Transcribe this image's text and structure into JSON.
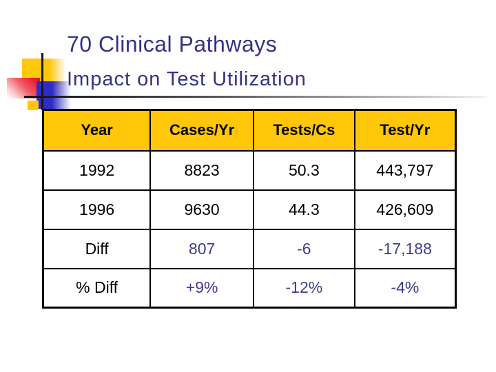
{
  "slide": {
    "title": "70 Clinical Pathways",
    "subtitle": "Impact on Test Utilization"
  },
  "table": {
    "headers": [
      "Year",
      "Cases/Yr",
      "Tests/Cs",
      "Test/Yr"
    ],
    "rows": [
      [
        "1992",
        "8823",
        "50.3",
        "443,797"
      ],
      [
        "1996",
        "9630",
        "44.3",
        "426,609"
      ],
      [
        "Diff",
        "807",
        "-6",
        "-17,188"
      ],
      [
        "% Diff",
        "+9%",
        "-12%",
        "-4%"
      ]
    ]
  },
  "chart_data": {
    "type": "table",
    "title": "70 Clinical Pathways — Impact on Test Utilization",
    "columns": [
      "Year",
      "Cases/Yr",
      "Tests/Cs",
      "Test/Yr"
    ],
    "rows": [
      {
        "Year": "1992",
        "Cases/Yr": 8823,
        "Tests/Cs": 50.3,
        "Test/Yr": 443797
      },
      {
        "Year": "1996",
        "Cases/Yr": 9630,
        "Tests/Cs": 44.3,
        "Test/Yr": 426609
      },
      {
        "Year": "Diff",
        "Cases/Yr": 807,
        "Tests/Cs": -6,
        "Test/Yr": -17188
      },
      {
        "Year": "% Diff",
        "Cases/Yr": "+9%",
        "Tests/Cs": "-12%",
        "Test/Yr": "-4%"
      }
    ]
  },
  "colors": {
    "title_text": "#333387",
    "table_header_bg": "#FFC60A",
    "diff_value_text": "#3D3D8E",
    "body_text": "#000000",
    "ornament_yellow": "#FFC60A",
    "ornament_red": "#E51224",
    "ornament_blue": "#2D2DC6"
  }
}
